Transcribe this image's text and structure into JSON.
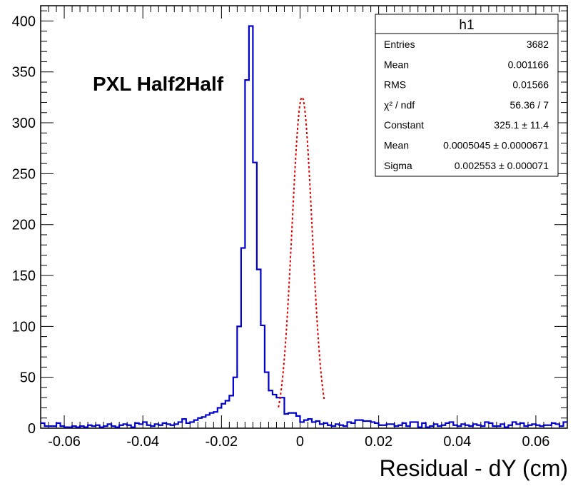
{
  "chart_data": {
    "type": "histogram",
    "histogram_name": "h1",
    "title_label": "PXL Half2Half",
    "xlabel": "Residual - dY (cm)",
    "ylabel": "",
    "xlim": [
      -0.066,
      0.068
    ],
    "ylim": [
      0,
      415
    ],
    "x_ticks": [
      -0.06,
      -0.04,
      -0.02,
      0,
      0.02,
      0.04,
      0.06
    ],
    "x_tick_labels": [
      "-0.06",
      "-0.04",
      "-0.02",
      "0",
      "0.02",
      "0.04",
      "0.06"
    ],
    "y_ticks": [
      0,
      50,
      100,
      150,
      200,
      250,
      300,
      350,
      400
    ],
    "y_tick_labels": [
      "0",
      "50",
      "100",
      "150",
      "200",
      "250",
      "300",
      "350",
      "400"
    ],
    "bin_width": 0.001,
    "bin_edges_start": -0.066,
    "bin_counts": [
      5,
      2,
      2,
      2,
      5,
      2,
      1,
      1,
      2,
      1,
      2,
      1,
      3,
      2,
      3,
      1,
      2,
      4,
      2,
      1,
      3,
      4,
      3,
      1,
      5,
      4,
      6,
      3,
      2,
      4,
      3,
      5,
      4,
      3,
      4,
      6,
      9,
      5,
      6,
      8,
      10,
      11,
      13,
      15,
      16,
      20,
      24,
      27,
      32,
      50,
      100,
      177,
      342,
      395,
      261,
      156,
      101,
      55,
      37,
      33,
      30,
      30,
      14,
      15,
      15,
      12,
      6,
      8,
      9,
      6,
      7,
      4,
      5,
      3,
      2,
      4,
      3,
      2,
      6,
      5,
      8,
      8,
      7,
      7,
      6,
      5,
      3,
      3,
      4,
      4,
      2,
      3,
      5,
      2,
      6,
      6,
      1,
      5,
      1,
      2,
      4,
      2,
      3,
      5,
      6,
      3,
      2,
      4,
      3,
      2,
      4,
      3,
      2,
      6,
      5,
      2,
      2,
      4,
      1,
      3,
      6,
      4,
      5,
      2,
      3,
      4,
      3,
      2,
      3,
      3,
      5,
      4,
      2,
      6
    ],
    "fit": {
      "function": "gaus",
      "constant": 325.1,
      "mean": 0.0005045,
      "sigma": 0.002553,
      "x_range": [
        -0.0055,
        0.0062
      ]
    },
    "colors": {
      "histogram": "#0000cc",
      "fit": "#dd0000",
      "frame": "#000000"
    }
  },
  "stats_box": {
    "title": "h1",
    "rows": [
      {
        "label": "Entries",
        "value": "3682"
      },
      {
        "label": "Mean",
        "value": "0.001166"
      },
      {
        "label": "RMS",
        "value": "0.01566"
      },
      {
        "label": "χ² / ndf",
        "value": "56.36 / 7"
      },
      {
        "label": "Constant",
        "value": "325.1 ± 11.4"
      },
      {
        "label": "Mean",
        "value": "0.0005045 ± 0.0000671"
      },
      {
        "label": "Sigma",
        "value": "0.002553 ± 0.000071"
      }
    ]
  }
}
